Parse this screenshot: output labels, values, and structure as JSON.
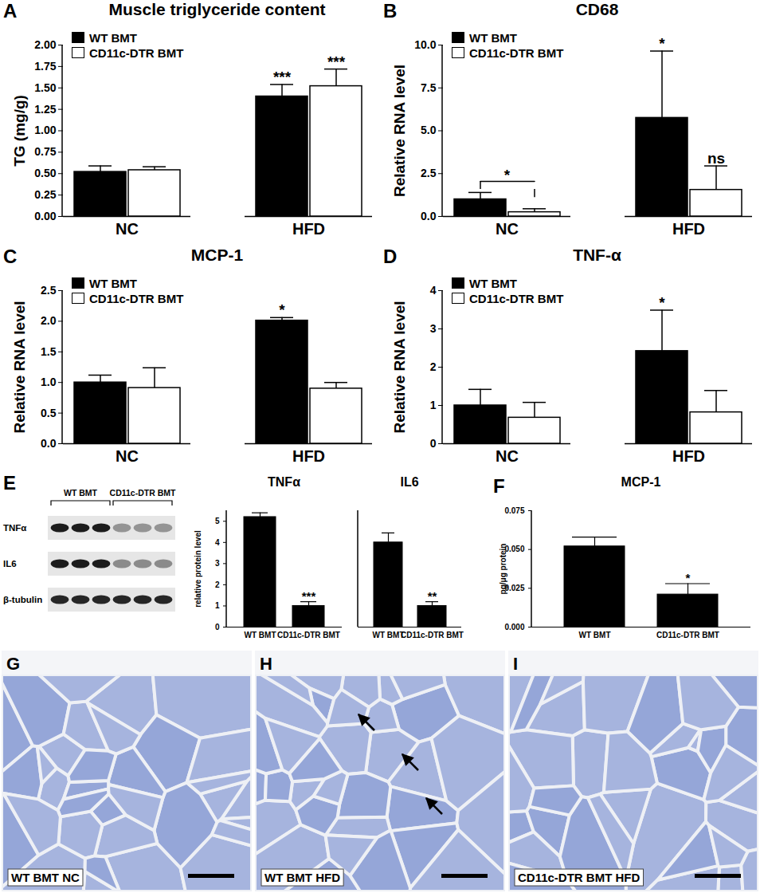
{
  "chart_data": [
    {
      "panel": "A",
      "type": "bar",
      "title": "Muscle triglyceride content",
      "categories": [
        "NC",
        "HFD"
      ],
      "y_label": "TG (mg/g)",
      "ylim": [
        0,
        2
      ],
      "yticks": [
        {
          "value": 0,
          "label": "0.00"
        },
        {
          "value": 0.25,
          "label": "0.25"
        },
        {
          "value": 0.5,
          "label": "0.50"
        },
        {
          "value": 0.75,
          "label": "0.75"
        },
        {
          "value": 1,
          "label": "1.00"
        },
        {
          "value": 1.25,
          "label": "1.25"
        },
        {
          "value": 1.5,
          "label": "1.50"
        },
        {
          "value": 1.75,
          "label": "1.75"
        },
        {
          "value": 2,
          "label": "2.00"
        }
      ],
      "legend": "top-left",
      "series": [
        {
          "name": "WT BMT",
          "color": "#000000",
          "values": [
            0.52,
            1.4
          ],
          "errors": [
            0.07,
            0.14
          ],
          "significance": [
            null,
            "***"
          ]
        },
        {
          "name": "CD11c-DTR BMT",
          "color": "#ffffff",
          "values": [
            0.54,
            1.52
          ],
          "errors": [
            0.04,
            0.2
          ],
          "significance": [
            null,
            "***"
          ]
        }
      ]
    },
    {
      "panel": "B",
      "type": "bar",
      "title": "CD68",
      "categories": [
        "NC",
        "HFD"
      ],
      "y_label": "Relative RNA level",
      "ylim": [
        0,
        10
      ],
      "yticks": [
        {
          "value": 0,
          "label": "0.0"
        },
        2.5,
        {
          "value": 5,
          "label": "5.0"
        },
        7.5,
        {
          "value": 10,
          "label": "10.0"
        }
      ],
      "legend": "top-left",
      "series": [
        {
          "name": "WT BMT",
          "color": "#000000",
          "values": [
            1.0,
            5.75
          ],
          "errors": [
            0.4,
            3.9
          ],
          "significance": [
            null,
            "*"
          ]
        },
        {
          "name": "CD11c-DTR BMT",
          "color": "#ffffff",
          "values": [
            0.25,
            1.55
          ],
          "errors": [
            0.2,
            1.4
          ],
          "significance": [
            null,
            "ns"
          ]
        }
      ],
      "brackets": [
        {
          "category": "NC",
          "between": [
            "WT BMT",
            "CD11c-DTR BMT"
          ],
          "text": "*"
        }
      ]
    },
    {
      "panel": "C",
      "type": "bar",
      "title": "MCP-1",
      "categories": [
        "NC",
        "HFD"
      ],
      "y_label": "Relative RNA level",
      "ylim": [
        0,
        2.5
      ],
      "yticks": [
        {
          "value": 0,
          "label": "0.0"
        },
        0.5,
        {
          "value": 1,
          "label": "1.0"
        },
        1.5,
        {
          "value": 2,
          "label": "2.0"
        },
        2.5
      ],
      "legend": "top-left",
      "series": [
        {
          "name": "WT BMT",
          "color": "#000000",
          "values": [
            1.0,
            2.01
          ],
          "errors": [
            0.12,
            0.05
          ],
          "significance": [
            null,
            "*"
          ]
        },
        {
          "name": "CD11c-DTR BMT",
          "color": "#ffffff",
          "values": [
            0.91,
            0.9
          ],
          "errors": [
            0.33,
            0.1
          ],
          "significance": [
            null,
            null
          ]
        }
      ]
    },
    {
      "panel": "D",
      "type": "bar",
      "title": "TNF-α",
      "categories": [
        "NC",
        "HFD"
      ],
      "y_label": "Relative RNA level",
      "ylim": [
        0,
        4
      ],
      "yticks": [
        0,
        1,
        2,
        3,
        4
      ],
      "legend": "top-left",
      "series": [
        {
          "name": "WT BMT",
          "color": "#000000",
          "values": [
            1.0,
            2.42
          ],
          "errors": [
            0.42,
            1.07
          ],
          "significance": [
            null,
            "*"
          ]
        },
        {
          "name": "CD11c-DTR BMT",
          "color": "#ffffff",
          "values": [
            0.68,
            0.82
          ],
          "errors": [
            0.4,
            0.57
          ],
          "significance": [
            null,
            null
          ]
        }
      ]
    },
    {
      "type": "bar",
      "title": "TNFα",
      "categories": [
        "WT BMT",
        "CD11c-DTR BMT"
      ],
      "y_label": "relative protein level",
      "ylim": [
        0,
        5.5
      ],
      "yticks": [
        0,
        1,
        2,
        3,
        4,
        5
      ],
      "color": "#000000",
      "values": [
        5.2,
        1.0
      ],
      "errors": [
        0.2,
        0.2
      ],
      "significance": [
        null,
        "***"
      ]
    },
    {
      "type": "bar",
      "title": "IL6",
      "categories": [
        "WT BMT",
        "CD11c-DTR BMT"
      ],
      "ylim": [
        0,
        5.5
      ],
      "tick_labels": "x",
      "color": "#000000",
      "values": [
        4.0,
        1.0
      ],
      "errors": [
        0.45,
        0.2
      ],
      "significance": [
        null,
        "**"
      ]
    },
    {
      "panel": "F",
      "type": "bar",
      "title": "MCP-1",
      "categories": [
        "WT BMT",
        "CD11c-DTR BMT"
      ],
      "y_label": "pg/μg protein",
      "ylim": [
        0,
        0.075
      ],
      "yticks": [
        {
          "value": 0,
          "label": "0.000"
        },
        {
          "value": 0.025,
          "label": "0.025"
        },
        {
          "value": 0.05,
          "label": "0.050"
        },
        {
          "value": 0.075,
          "label": "0.075"
        }
      ],
      "color": "#000000",
      "values": [
        0.052,
        0.021
      ],
      "errors": [
        0.006,
        0.007
      ],
      "significance": [
        null,
        "*"
      ]
    }
  ],
  "blot": {
    "panel": "E",
    "groups": [
      {
        "label": "WT BMT",
        "lanes": 3
      },
      {
        "label": "CD11c-DTR BMT",
        "lanes": 3
      }
    ],
    "rows": [
      "TNFα",
      "IL6",
      "β-tubulin"
    ]
  },
  "micrographs": [
    {
      "panel": "G",
      "caption": "WT BMT NC"
    },
    {
      "panel": "H",
      "caption": "WT BMT HFD",
      "arrows": true
    },
    {
      "panel": "I",
      "caption": "CD11c-DTR BMT HFD"
    }
  ]
}
